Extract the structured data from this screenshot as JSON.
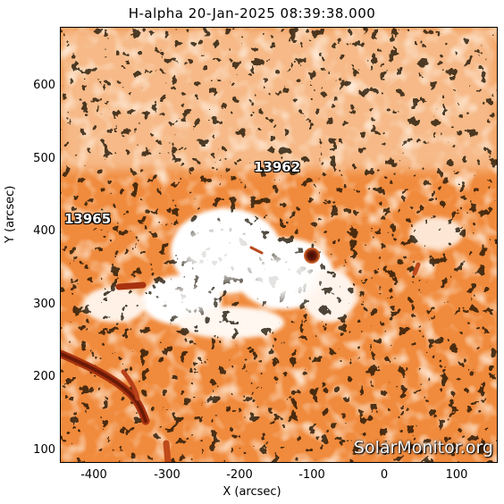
{
  "title": "H-alpha 20-Jan-2025 08:39:38.000",
  "xlabel": "X (arcsec)",
  "ylabel": "Y (arcsec)",
  "xticks": [
    "-400",
    "-300",
    "-200",
    "-100",
    "0",
    "100"
  ],
  "yticks": [
    "600",
    "500",
    "400",
    "300",
    "200",
    "100"
  ],
  "regions": [
    {
      "number": "13962"
    },
    {
      "number": "13965"
    }
  ],
  "watermark": "SolarMonitor.org",
  "colors": {
    "background": "#f08a3c",
    "plage": "#ffffff",
    "sunspot": "#6b1a08",
    "filament": "#a8320f"
  }
}
